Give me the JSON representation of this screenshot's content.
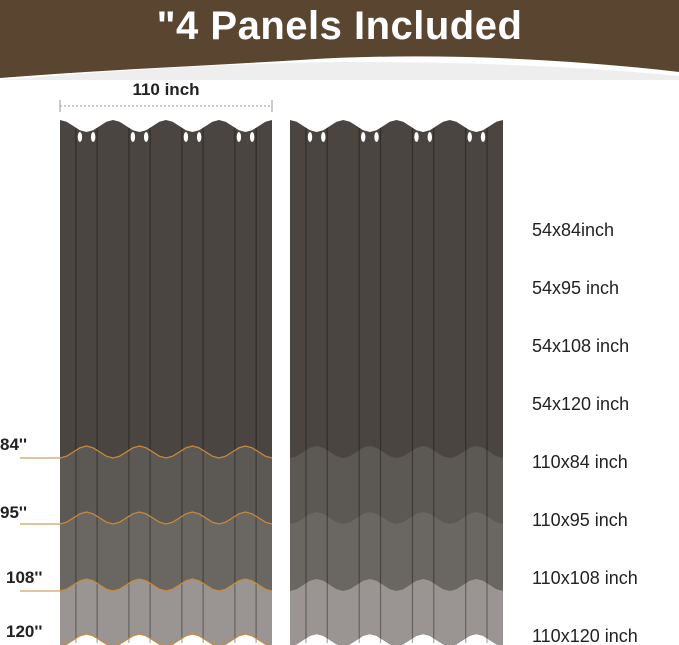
{
  "title": "\"4 Panels Included",
  "width_label": "110 inch",
  "length_marks": [
    "84''",
    "95''",
    "108''",
    "120''"
  ],
  "sizes": [
    "54x84inch",
    "54x95 inch",
    "54x108 inch",
    "54x120 inch",
    "110x84 inch",
    "110x95 inch",
    "110x108 inch",
    "110x120 inch"
  ],
  "colors": {
    "banner": "#5a4630",
    "curtain_top": "#4a4541",
    "band_84_95": "#5c5854",
    "band_95_108": "#6a6662",
    "band_108_120": "#9a9592",
    "measure_line": "#c98a3e"
  }
}
